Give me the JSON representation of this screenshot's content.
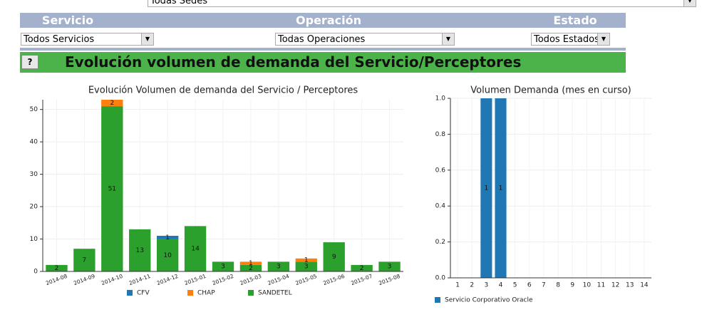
{
  "page": {
    "top_select": "Todas Sedes",
    "filters": [
      {
        "label": "Servicio",
        "select": "Todos Servicios"
      },
      {
        "label": "Operación",
        "select": "Todas Operaciones"
      },
      {
        "label": "Estado",
        "select": "Todos Estados"
      }
    ],
    "help_button": "?",
    "section_title": "Evolución volumen de demanda del Servicio/Perceptores"
  },
  "chart_data": [
    {
      "type": "bar",
      "stacked": true,
      "title": "Evolución Volumen de demanda del Servicio / Perceptores",
      "categories": [
        "2014-08",
        "2014-09",
        "2014-10",
        "2014-11",
        "2014-12",
        "2015-01",
        "2015-02",
        "2015-03",
        "2015-04",
        "2015-05",
        "2015-06",
        "2015-07",
        "2015-08"
      ],
      "series": [
        {
          "name": "CFV",
          "color": "#1f77b4",
          "values": [
            null,
            null,
            null,
            null,
            1,
            null,
            null,
            null,
            null,
            null,
            null,
            null,
            null
          ]
        },
        {
          "name": "CHAP",
          "color": "#ff7f0e",
          "values": [
            null,
            null,
            2,
            null,
            null,
            null,
            null,
            1,
            null,
            1,
            null,
            null,
            null
          ]
        },
        {
          "name": "SANDETEL",
          "color": "#2ca02c",
          "values": [
            2,
            7,
            51,
            13,
            10,
            14,
            3,
            2,
            3,
            3,
            9,
            2,
            3
          ]
        }
      ],
      "ylim": [
        0,
        53
      ],
      "yticks": [
        0,
        10,
        20,
        30,
        40,
        50
      ],
      "grid": true,
      "legend": "bottom"
    },
    {
      "type": "bar",
      "stacked": true,
      "title": "Volumen Demanda (mes en curso)",
      "categories": [
        "1",
        "2",
        "3",
        "4",
        "5",
        "6",
        "7",
        "8",
        "9",
        "10",
        "11",
        "12",
        "13",
        "14"
      ],
      "series": [
        {
          "name": "Servicio Corporativo Oracle",
          "color": "#1f77b4",
          "values": [
            null,
            null,
            1,
            1,
            null,
            null,
            null,
            null,
            null,
            null,
            null,
            null,
            null,
            null
          ]
        }
      ],
      "ylim": [
        0,
        1
      ],
      "yticks": [
        {
          "value": 0,
          "label": "0.0"
        },
        0.2,
        0.4,
        0.6,
        0.8,
        {
          "value": 1,
          "label": "1.0"
        }
      ],
      "grid": true,
      "legend": "bottom"
    }
  ]
}
